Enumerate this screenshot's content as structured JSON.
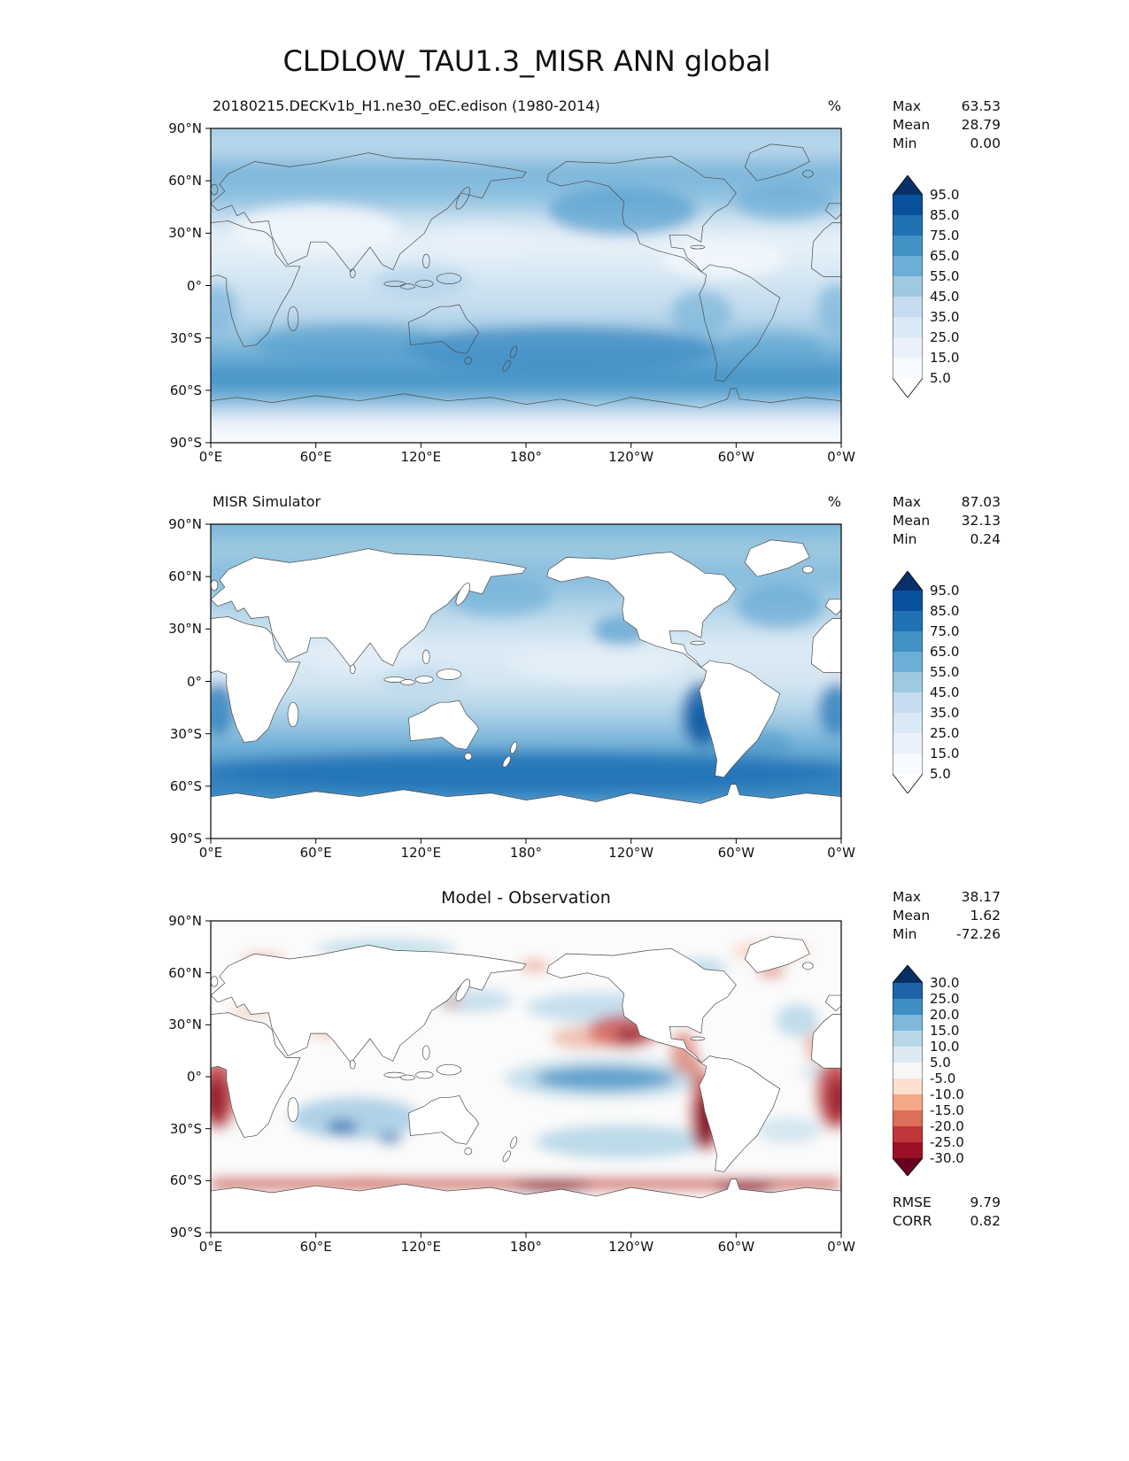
{
  "title": "CLDLOW_TAU1.3_MISR ANN global",
  "stats_labels": {
    "max": "Max",
    "mean": "Mean",
    "min": "Min",
    "rmse": "RMSE",
    "corr": "CORR"
  },
  "axes": {
    "x_ticks": [
      "0°E",
      "60°E",
      "120°E",
      "180°",
      "120°W",
      "60°W",
      "0°W"
    ],
    "y_ticks": [
      "90°N",
      "60°N",
      "30°N",
      "0°",
      "30°S",
      "60°S",
      "90°S"
    ]
  },
  "panels": [
    {
      "subtitle": "20180215.DECKv1b_H1.ne30_oEC.edison (1980-2014)",
      "unit": "%",
      "stats": {
        "max": "63.53",
        "mean": "28.79",
        "min": "0.00"
      }
    },
    {
      "subtitle": "MISR Simulator",
      "unit": "%",
      "stats": {
        "max": "87.03",
        "mean": "32.13",
        "min": "0.24"
      }
    },
    {
      "subtitle": "Model - Observation",
      "stats": {
        "max": "38.17",
        "mean": "1.62",
        "min": "-72.26"
      },
      "metrics": {
        "rmse": "9.79",
        "corr": "0.82"
      }
    }
  ],
  "colorbars": {
    "blues": {
      "tick_labels": [
        "95.0",
        "85.0",
        "75.0",
        "65.0",
        "55.0",
        "45.0",
        "35.0",
        "25.0",
        "15.0",
        "5.0"
      ],
      "colors": [
        "#08306b",
        "#08519c",
        "#2171b5",
        "#4292c6",
        "#6baed6",
        "#9ecae1",
        "#c6dbef",
        "#d9e8f5",
        "#eaf1fa",
        "#f7fbff",
        "#ffffff"
      ]
    },
    "rdbu": {
      "tick_labels": [
        "30.0",
        "25.0",
        "20.0",
        "15.0",
        "10.0",
        "5.0",
        "-5.0",
        "-10.0",
        "-15.0",
        "-20.0",
        "-25.0",
        "-30.0"
      ],
      "colors": [
        "#053061",
        "#1f63a8",
        "#3f8ec4",
        "#7fb8da",
        "#b7d7e9",
        "#dde9f2",
        "#f7f7f7",
        "#fcdfcf",
        "#f5a887",
        "#dd6e57",
        "#c13639",
        "#9c1127",
        "#67001f"
      ]
    }
  },
  "chart_data": {
    "type": "heatmap",
    "subtype": "global lat-lon filled-contour maps: model, observation, difference",
    "projection": "equirectangular",
    "title": "CLDLOW_TAU1.3_MISR ANN global",
    "x_axis": {
      "ticks": [
        "0°E",
        "60°E",
        "120°E",
        "180°",
        "120°W",
        "60°W",
        "0°W"
      ],
      "range_deg": [
        0,
        360
      ]
    },
    "y_axis": {
      "ticks": [
        "90°N",
        "60°N",
        "30°N",
        "0°",
        "30°S",
        "60°S",
        "90°S"
      ],
      "range_deg": [
        -90,
        90
      ]
    },
    "panels": [
      {
        "name": "20180215.DECKv1b_H1.ne30_oEC.edison (1980-2014)",
        "units": "%",
        "stats": {
          "max": 63.53,
          "mean": 28.79,
          "min": 0.0
        },
        "contour_levels": [
          5,
          15,
          25,
          35,
          45,
          55,
          65,
          75,
          85,
          95
        ],
        "colormap": "Blues"
      },
      {
        "name": "MISR Simulator",
        "units": "%",
        "stats": {
          "max": 87.03,
          "mean": 32.13,
          "min": 0.24
        },
        "contour_levels": [
          5,
          15,
          25,
          35,
          45,
          55,
          65,
          75,
          85,
          95
        ],
        "colormap": "Blues"
      },
      {
        "name": "Model - Observation",
        "units": "%",
        "stats": {
          "max": 38.17,
          "mean": 1.62,
          "min": -72.26
        },
        "contour_levels": [
          -30,
          -25,
          -20,
          -15,
          -10,
          -5,
          5,
          10,
          15,
          20,
          25,
          30
        ],
        "colormap": "RdBu",
        "rmse": 9.79,
        "corr": 0.82
      }
    ]
  }
}
